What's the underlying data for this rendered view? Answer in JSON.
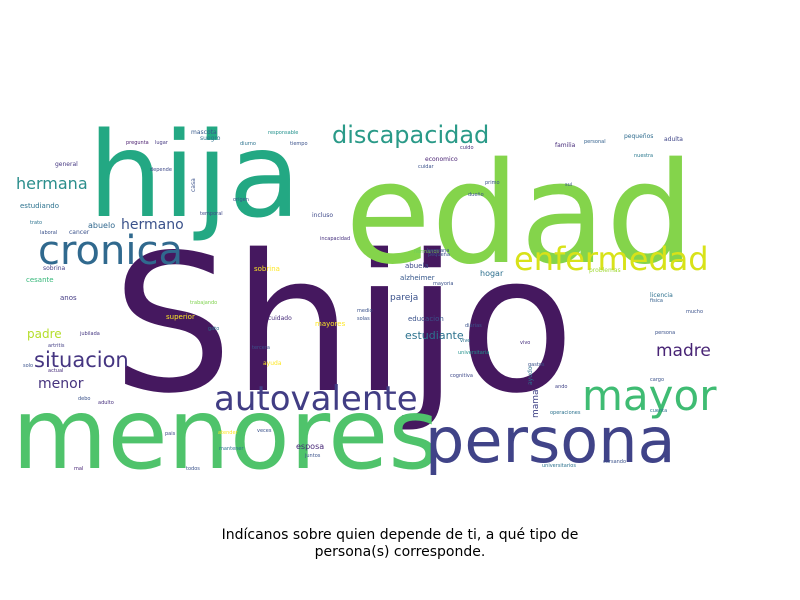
{
  "chart_data": {
    "type": "wordcloud",
    "caption_lines": [
      "Indícanos sobre quien depende de ti, a qué tipo de",
      "persona(s) corresponde."
    ],
    "colormap": "viridis",
    "background": "#ffffff",
    "words": [
      {
        "text": "Shijo",
        "color": "#45185f"
      },
      {
        "text": "edad",
        "color": "#84d44b"
      },
      {
        "text": "hija",
        "color": "#23a883"
      },
      {
        "text": "menores",
        "color": "#4fc36b"
      },
      {
        "text": "persona",
        "color": "#404388"
      },
      {
        "text": "cronica",
        "color": "#30698e"
      },
      {
        "text": "autovalente",
        "color": "#413d84"
      },
      {
        "text": "mayor",
        "color": "#3fbc73"
      },
      {
        "text": "enfermedad",
        "color": "#d8e219"
      },
      {
        "text": "discapacidad",
        "color": "#2a9a88"
      },
      {
        "text": "situacion",
        "color": "#453581"
      },
      {
        "text": "hermana",
        "color": "#2a8e8c"
      },
      {
        "text": "madre",
        "color": "#482475"
      },
      {
        "text": "hermano",
        "color": "#3b528b"
      },
      {
        "text": "menor",
        "color": "#46337e"
      },
      {
        "text": "padre",
        "color": "#b5de2b"
      },
      {
        "text": "estudiante",
        "color": "#2c728e"
      },
      {
        "text": "esposa",
        "color": "#482878"
      },
      {
        "text": "pareja",
        "color": "#3b528b"
      },
      {
        "text": "hogar",
        "color": "#2d708e"
      },
      {
        "text": "abuelo",
        "color": "#31688e"
      },
      {
        "text": "abuela",
        "color": "#3e4a89"
      },
      {
        "text": "alzheimer",
        "color": "#38598c"
      },
      {
        "text": "educacion",
        "color": "#3b528b"
      },
      {
        "text": "sobrina",
        "color": "#fde725"
      },
      {
        "text": "cesante",
        "color": "#35b779"
      },
      {
        "text": "anos",
        "color": "#443a83"
      },
      {
        "text": "mama",
        "color": "#414487"
      },
      {
        "text": "ayuda",
        "color": "#fde725"
      },
      {
        "text": "cancer",
        "color": "#3b528b"
      },
      {
        "text": "estudiando",
        "color": "#2c728e"
      },
      {
        "text": "sobrina",
        "color": "#433e85"
      },
      {
        "text": "superior",
        "color": "#fde725"
      },
      {
        "text": "mayores",
        "color": "#fde725"
      },
      {
        "text": "cuidado",
        "color": "#472d7b"
      },
      {
        "text": "familia",
        "color": "#472c7a"
      },
      {
        "text": "general",
        "color": "#453781"
      },
      {
        "text": "mascota",
        "color": "#375a8c"
      },
      {
        "text": "suegro",
        "color": "#2c728e"
      },
      {
        "text": "pequeños",
        "color": "#2f6c8e"
      },
      {
        "text": "adulta",
        "color": "#404688"
      },
      {
        "text": "economico",
        "color": "#482173"
      },
      {
        "text": "incapacidad",
        "color": "#46307e"
      },
      {
        "text": "hermanos",
        "color": "#6ece58"
      },
      {
        "text": "problemas",
        "color": "#a2da37"
      },
      {
        "text": "trabajando",
        "color": "#7fd34e"
      },
      {
        "text": "persona",
        "color": "#3b528b"
      },
      {
        "text": "depende",
        "color": "#3e4989"
      },
      {
        "text": "pregunta",
        "color": "#481b6d"
      },
      {
        "text": "lugar",
        "color": "#453882"
      },
      {
        "text": "diurno",
        "color": "#2c728e"
      },
      {
        "text": "tiempo",
        "color": "#3b528b"
      },
      {
        "text": "responsable",
        "color": "#21918c"
      },
      {
        "text": "cuido",
        "color": "#46317e"
      },
      {
        "text": "personal",
        "color": "#34618d"
      },
      {
        "text": "nuestra",
        "color": "#2a788e"
      },
      {
        "text": "laboral",
        "color": "#3b528b"
      },
      {
        "text": "trato",
        "color": "#2c728e"
      },
      {
        "text": "incluso",
        "color": "#3e4989"
      },
      {
        "text": "licencia",
        "color": "#2d708e"
      },
      {
        "text": "fisica",
        "color": "#35608d"
      },
      {
        "text": "jubilada",
        "color": "#453781"
      },
      {
        "text": "artritis",
        "color": "#433e85"
      },
      {
        "text": "actual",
        "color": "#472d7b"
      },
      {
        "text": "debo",
        "color": "#3b528b"
      },
      {
        "text": "adulto",
        "color": "#46307e"
      },
      {
        "text": "pais",
        "color": "#3e4989"
      },
      {
        "text": "todos",
        "color": "#3b528b"
      },
      {
        "text": "mal",
        "color": "#482576"
      },
      {
        "text": "ayudo",
        "color": "#2c728e"
      },
      {
        "text": "ando",
        "color": "#414487"
      },
      {
        "text": "cargo",
        "color": "#3b528b"
      },
      {
        "text": "cuenta",
        "color": "#2c728e"
      },
      {
        "text": "operaciones",
        "color": "#2c728e"
      },
      {
        "text": "universitarios",
        "color": "#2c728e"
      },
      {
        "text": "cursando",
        "color": "#3b528b"
      },
      {
        "text": "juntos",
        "color": "#3b528b"
      },
      {
        "text": "tercera",
        "color": "#3b528b"
      },
      {
        "text": "veces",
        "color": "#3b528b"
      },
      {
        "text": "mantener",
        "color": "#2c728e"
      },
      {
        "text": "atender",
        "color": "#fde725"
      },
      {
        "text": "cognitiva",
        "color": "#3e4989"
      },
      {
        "text": "universitaria",
        "color": "#21918c"
      },
      {
        "text": "vivo",
        "color": "#46307e"
      },
      {
        "text": "vive",
        "color": "#2c728e"
      },
      {
        "text": "casa",
        "color": "#3b528b"
      },
      {
        "text": "solo",
        "color": "#3b528b"
      },
      {
        "text": "gato",
        "color": "#2c728e"
      },
      {
        "text": "origen",
        "color": "#3b528b"
      },
      {
        "text": "temporal",
        "color": "#3e4989"
      },
      {
        "text": "primo",
        "color": "#3b528b"
      },
      {
        "text": "sui",
        "color": "#3b528b"
      },
      {
        "text": "hermana",
        "color": "#3b528b"
      },
      {
        "text": "pequeña",
        "color": "#3b528b"
      },
      {
        "text": "mayoria",
        "color": "#3b528b"
      },
      {
        "text": "diarias",
        "color": "#3b528b"
      },
      {
        "text": "solas",
        "color": "#3b528b"
      },
      {
        "text": "medio",
        "color": "#3b528b"
      },
      {
        "text": "gastos",
        "color": "#3b528b"
      },
      {
        "text": "dueño",
        "color": "#3b528b"
      },
      {
        "text": "cuidar",
        "color": "#3b528b"
      },
      {
        "text": "mucho",
        "color": "#3b528b"
      }
    ]
  }
}
